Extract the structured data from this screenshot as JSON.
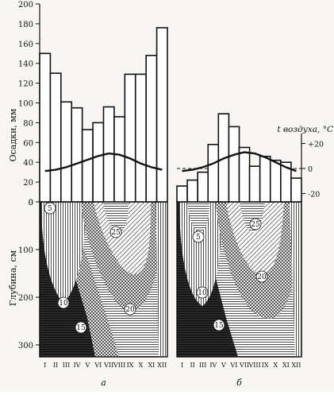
{
  "chart_data": [
    {
      "type": "bar",
      "panel": "а",
      "categories": [
        "I",
        "II",
        "III",
        "IV",
        "V",
        "VI",
        "VII",
        "VIII",
        "IX",
        "X",
        "XI",
        "XII"
      ],
      "series": [
        {
          "name": "",
          "values": [
            150,
            130,
            101,
            95,
            73,
            80,
            96,
            86,
            129,
            129,
            148,
            176
          ]
        }
      ],
      "air_temperature_curve": [
        -2,
        -1,
        1,
        4,
        7,
        10,
        12,
        11,
        8,
        4,
        1,
        -1
      ],
      "ylabel": "Осадки, мм",
      "ylim": [
        0,
        200
      ],
      "yticks": [
        "0",
        "20",
        "40",
        "60",
        "80",
        "100",
        "120",
        "140",
        "160",
        "180",
        "200"
      ],
      "depth_ylabel": "Глубина, см",
      "depth_ylim": [
        0,
        330
      ],
      "depth_yticks": [
        "0",
        "100",
        "200",
        "300"
      ],
      "isolines": [
        "5",
        "10",
        "15",
        "20",
        "25"
      ],
      "panel_label": "а"
    },
    {
      "type": "bar",
      "panel": "б",
      "categories": [
        "I",
        "II",
        "III",
        "IV",
        "V",
        "VI",
        "VII",
        "VIII",
        "IX",
        "X",
        "XI",
        "XII"
      ],
      "series": [
        {
          "name": "",
          "values": [
            16,
            22,
            30,
            58,
            89,
            76,
            55,
            36,
            46,
            42,
            40,
            24
          ]
        }
      ],
      "air_temperature_curve": [
        -2,
        -1,
        1,
        4,
        8,
        11,
        13,
        12,
        9,
        5,
        1,
        -2
      ],
      "temperature_label": "t воздуха, °С",
      "temperature_ticks": [
        "+20",
        "0",
        "-20"
      ],
      "depth_ylim": [
        0,
        330
      ],
      "isolines": [
        "5",
        "10",
        "15",
        "20",
        "25"
      ],
      "panel_label": "б"
    }
  ]
}
